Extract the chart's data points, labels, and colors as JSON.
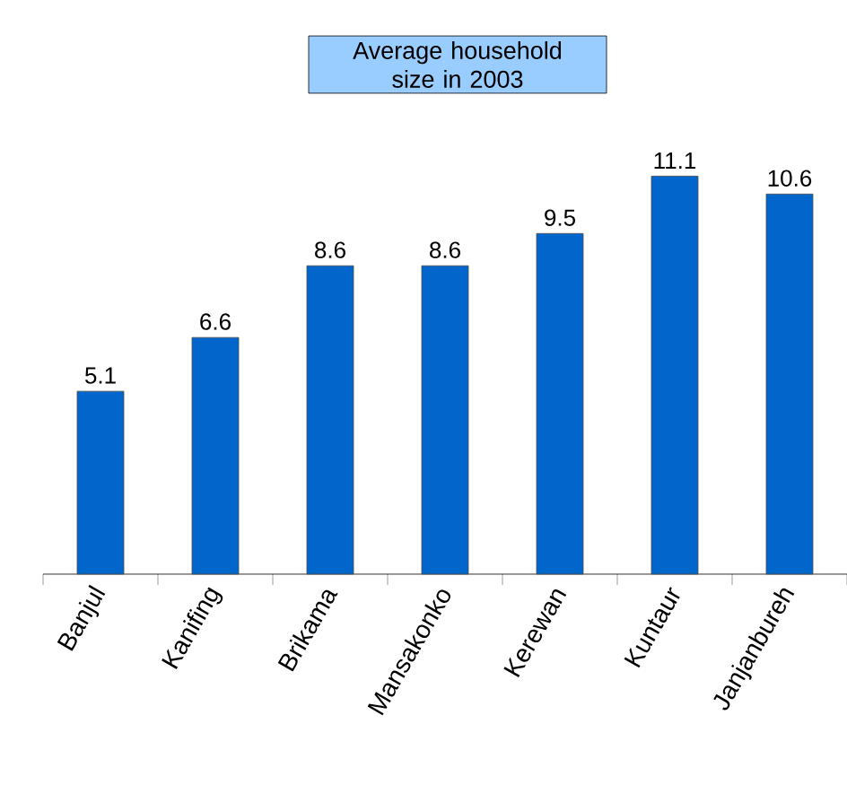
{
  "chart_data": {
    "type": "bar",
    "title": "Average household size in 2003",
    "categories": [
      "Banjul",
      "Kanifing",
      "Brikama",
      "Mansakonko",
      "Kerewan",
      "Kuntaur",
      "Janjanbureh"
    ],
    "values": [
      5.1,
      6.6,
      8.6,
      8.6,
      9.5,
      11.1,
      10.6
    ],
    "color": "#0066cc",
    "tick_labels": "x",
    "data_labels": true
  }
}
